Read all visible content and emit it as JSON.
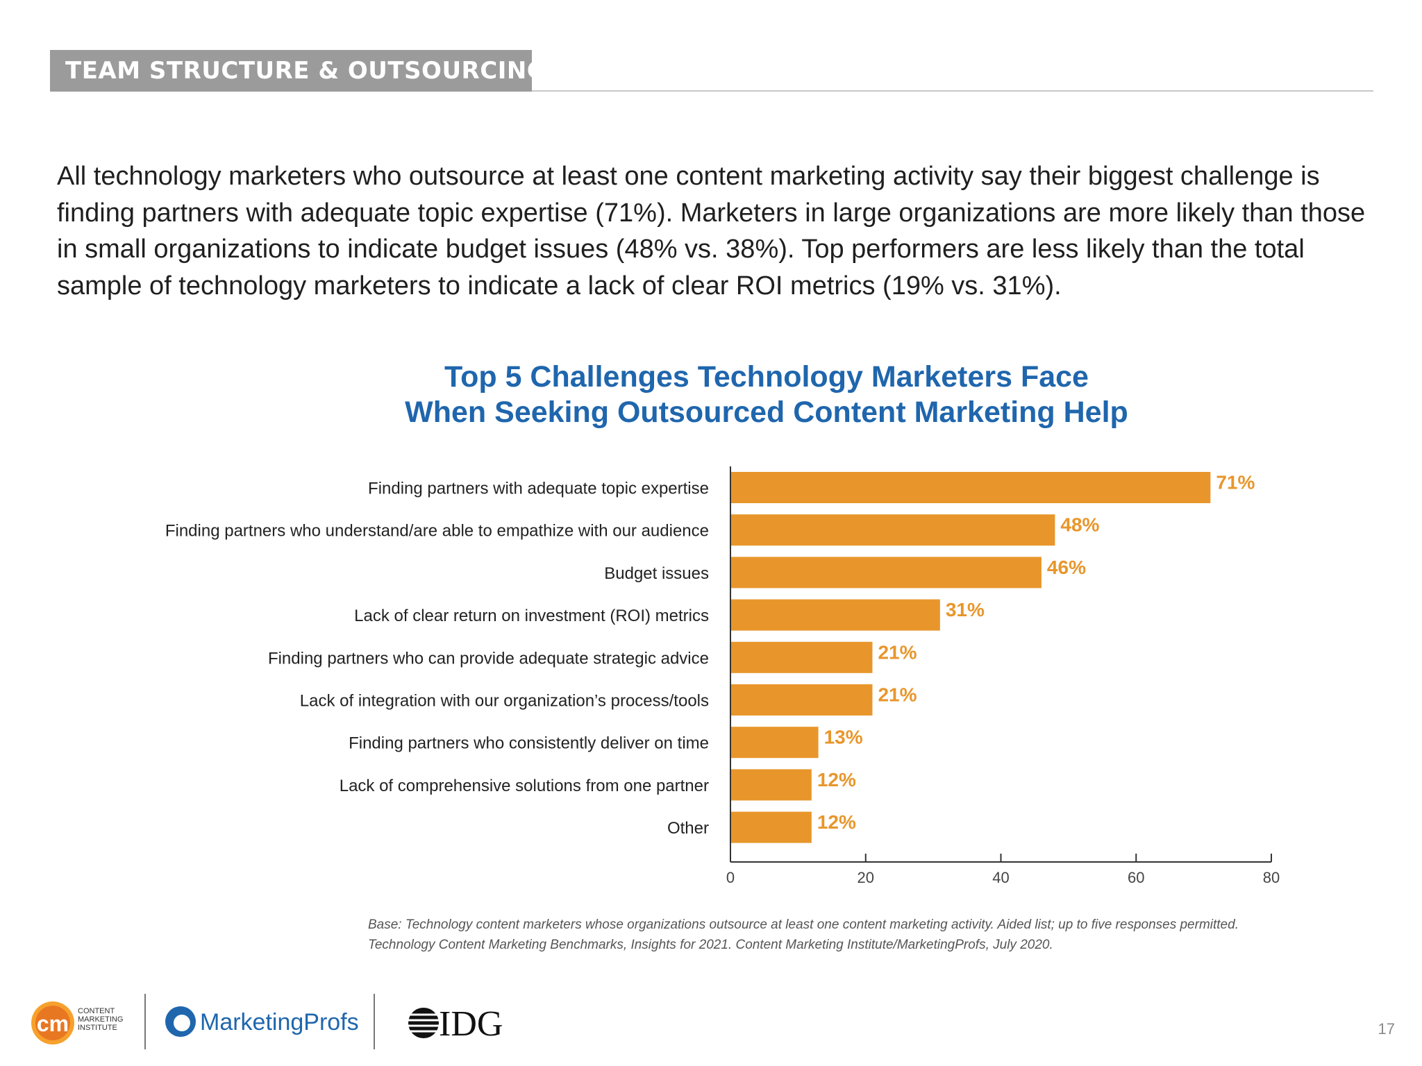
{
  "section": {
    "tag": "TEAM STRUCTURE & OUTSOURCING"
  },
  "intro": {
    "text": "All technology marketers who outsource at least one content marketing activity say their biggest challenge is finding partners with adequate topic expertise (71%). Marketers in large organizations are more likely than those in small organizations to indicate budget issues (48% vs. 38%). Top performers are less likely than the total sample of technology marketers to indicate a lack of clear ROI metrics (19% vs. 31%)."
  },
  "chart_data": {
    "type": "bar",
    "orientation": "horizontal",
    "title": "Top 5 Challenges Technology Marketers Face",
    "subtitle": "When Seeking Outsourced Content Marketing Help",
    "categories": [
      "Finding partners with adequate topic expertise",
      "Finding partners who understand/are able to empathize with our audience",
      "Budget issues",
      "Lack of clear return on investment (ROI) metrics",
      "Finding partners who can provide adequate strategic advice",
      "Lack of integration with our organization’s process/tools",
      "Finding partners who consistently deliver on time",
      "Lack of comprehensive solutions from one partner",
      "Other"
    ],
    "values": [
      71,
      48,
      46,
      31,
      21,
      21,
      13,
      12,
      12
    ],
    "data_labels": [
      "71%",
      "48%",
      "46%",
      "31%",
      "21%",
      "21%",
      "13%",
      "12%",
      "12%"
    ],
    "xlim": [
      0,
      80
    ],
    "xticks": [
      0,
      20,
      40,
      60,
      80
    ],
    "xlabel": "",
    "ylabel": "",
    "bar_color": "#e8962b",
    "label_color": "#e8962b",
    "grid": false
  },
  "footnote": {
    "line1": "Base: Technology content marketers whose organizations outsource at least one content marketing activity. Aided list; up to five responses permitted.",
    "line2": "Technology Content Marketing Benchmarks, Insights for 2021. Content Marketing Institute/MarketingProfs, July 2020."
  },
  "logos": {
    "cmi_mark": "cm",
    "cmi_text": [
      "CONTENT",
      "MARKETING",
      "INSTITUTE"
    ],
    "marketingprofs": "MarketingProfs",
    "idg": "IDG"
  },
  "page": {
    "number": "17"
  },
  "colors": {
    "title": "#1f66ad",
    "accent": "#e8962b",
    "tab": "#9b9b9b"
  }
}
